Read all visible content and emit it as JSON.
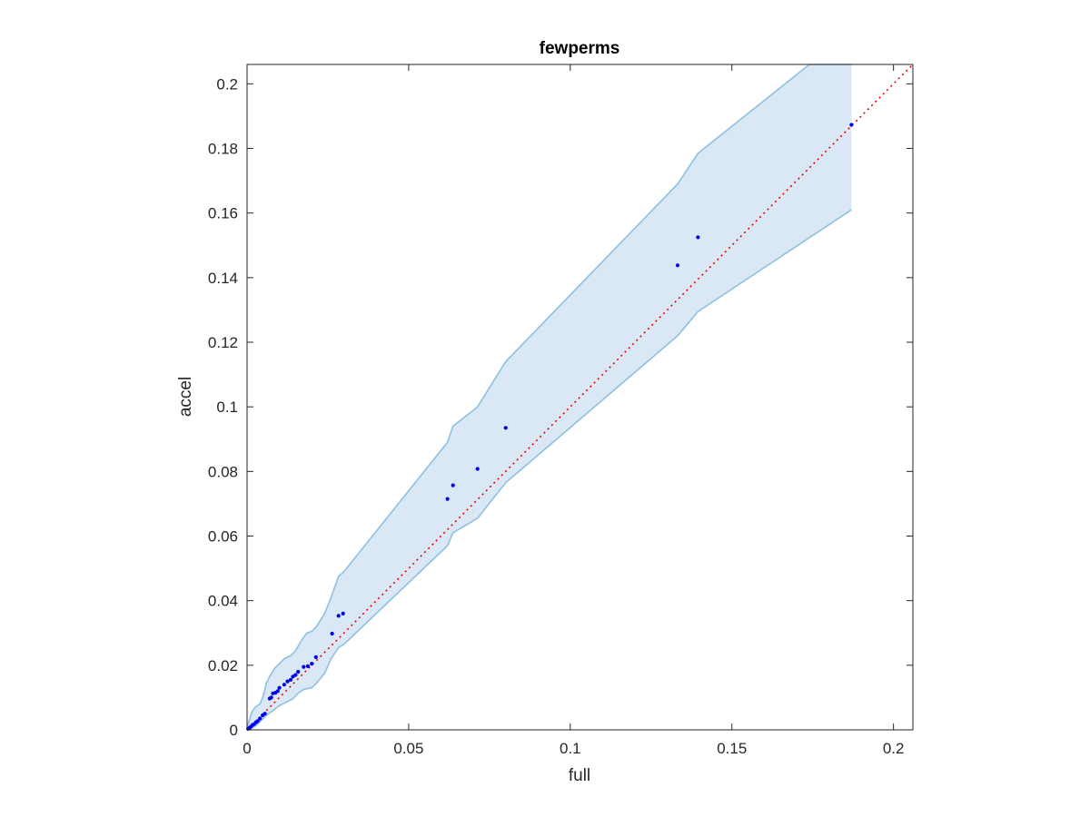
{
  "chart_data": {
    "type": "scatter",
    "title": "fewperms",
    "xlabel": "full",
    "ylabel": "accel",
    "xlim": [
      0,
      0.206
    ],
    "ylim": [
      0,
      0.206
    ],
    "xticks": [
      0,
      0.05,
      0.1,
      0.15,
      0.2
    ],
    "xtick_labels": [
      "0",
      "0.05",
      "0.1",
      "0.15",
      "0.2"
    ],
    "yticks": [
      0,
      0.02,
      0.04,
      0.06,
      0.08,
      0.1,
      0.12,
      0.14,
      0.16,
      0.18,
      0.2
    ],
    "ytick_labels": [
      "0",
      "0.02",
      "0.04",
      "0.06",
      "0.08",
      "0.1",
      "0.12",
      "0.14",
      "0.16",
      "0.18",
      "0.2"
    ],
    "grid": false,
    "colors": {
      "points": "#0000ee",
      "band_fill": "#d9e8f4",
      "band_edge": "#8ec0e0",
      "reference_line": "#ee0000",
      "axes": "#262626"
    },
    "series": [
      {
        "values": [
          [
            0.0003,
            0.0003
          ],
          [
            0.0008,
            0.0006
          ],
          [
            0.0012,
            0.001
          ],
          [
            0.0017,
            0.0015
          ],
          [
            0.0022,
            0.0018
          ],
          [
            0.0028,
            0.0024
          ],
          [
            0.0033,
            0.0027
          ],
          [
            0.004,
            0.0035
          ],
          [
            0.0048,
            0.0045
          ],
          [
            0.0055,
            0.005
          ],
          [
            0.007,
            0.0097
          ],
          [
            0.0075,
            0.01
          ],
          [
            0.008,
            0.0113
          ],
          [
            0.0088,
            0.0115
          ],
          [
            0.0095,
            0.012
          ],
          [
            0.01,
            0.013
          ],
          [
            0.0115,
            0.014
          ],
          [
            0.0125,
            0.015
          ],
          [
            0.0135,
            0.0155
          ],
          [
            0.0142,
            0.0165
          ],
          [
            0.015,
            0.017
          ],
          [
            0.0158,
            0.018
          ],
          [
            0.0175,
            0.0195
          ],
          [
            0.0188,
            0.0197
          ],
          [
            0.02,
            0.0205
          ],
          [
            0.0213,
            0.0225
          ],
          [
            0.0263,
            0.0298
          ],
          [
            0.0283,
            0.0353
          ],
          [
            0.0297,
            0.036
          ],
          [
            0.062,
            0.0715
          ],
          [
            0.0637,
            0.0757
          ],
          [
            0.0713,
            0.0808
          ],
          [
            0.08,
            0.0935
          ],
          [
            0.1332,
            0.1438
          ],
          [
            0.1395,
            0.1525
          ],
          [
            0.187,
            0.1873
          ]
        ]
      }
    ],
    "reference_line": {
      "from": [
        0,
        0
      ],
      "to": [
        0.206,
        0.206
      ],
      "style": "dotted"
    },
    "band": {
      "upper": [
        [
          0,
          0
        ],
        [
          0.0005,
          0.0025
        ],
        [
          0.0015,
          0.0055
        ],
        [
          0.0025,
          0.007
        ],
        [
          0.004,
          0.008
        ],
        [
          0.005,
          0.0105
        ],
        [
          0.006,
          0.0145
        ],
        [
          0.007,
          0.0165
        ],
        [
          0.0085,
          0.019
        ],
        [
          0.01,
          0.0205
        ],
        [
          0.0115,
          0.022
        ],
        [
          0.0135,
          0.023
        ],
        [
          0.015,
          0.0245
        ],
        [
          0.017,
          0.028
        ],
        [
          0.0185,
          0.03
        ],
        [
          0.02,
          0.0305
        ],
        [
          0.0215,
          0.032
        ],
        [
          0.024,
          0.036
        ],
        [
          0.026,
          0.041
        ],
        [
          0.0283,
          0.0475
        ],
        [
          0.03,
          0.049
        ],
        [
          0.062,
          0.089
        ],
        [
          0.0637,
          0.094
        ],
        [
          0.0713,
          0.1
        ],
        [
          0.08,
          0.114
        ],
        [
          0.1332,
          0.169
        ],
        [
          0.1395,
          0.1785
        ],
        [
          0.174,
          0.206
        ],
        [
          0.187,
          0.206
        ]
      ],
      "lower": [
        [
          0.187,
          0.161
        ],
        [
          0.1395,
          0.1295
        ],
        [
          0.1332,
          0.122
        ],
        [
          0.08,
          0.0765
        ],
        [
          0.0713,
          0.0655
        ],
        [
          0.0637,
          0.061
        ],
        [
          0.062,
          0.057
        ],
        [
          0.03,
          0.0265
        ],
        [
          0.0283,
          0.0255
        ],
        [
          0.026,
          0.022
        ],
        [
          0.024,
          0.0175
        ],
        [
          0.0215,
          0.0145
        ],
        [
          0.02,
          0.013
        ],
        [
          0.0175,
          0.0125
        ],
        [
          0.016,
          0.0115
        ],
        [
          0.014,
          0.0095
        ],
        [
          0.012,
          0.0085
        ],
        [
          0.01,
          0.0075
        ],
        [
          0.008,
          0.006
        ],
        [
          0.006,
          0.0045
        ],
        [
          0.0045,
          0.003
        ],
        [
          0.003,
          0.0015
        ],
        [
          0.0015,
          0.0005
        ],
        [
          0,
          0
        ]
      ]
    }
  }
}
